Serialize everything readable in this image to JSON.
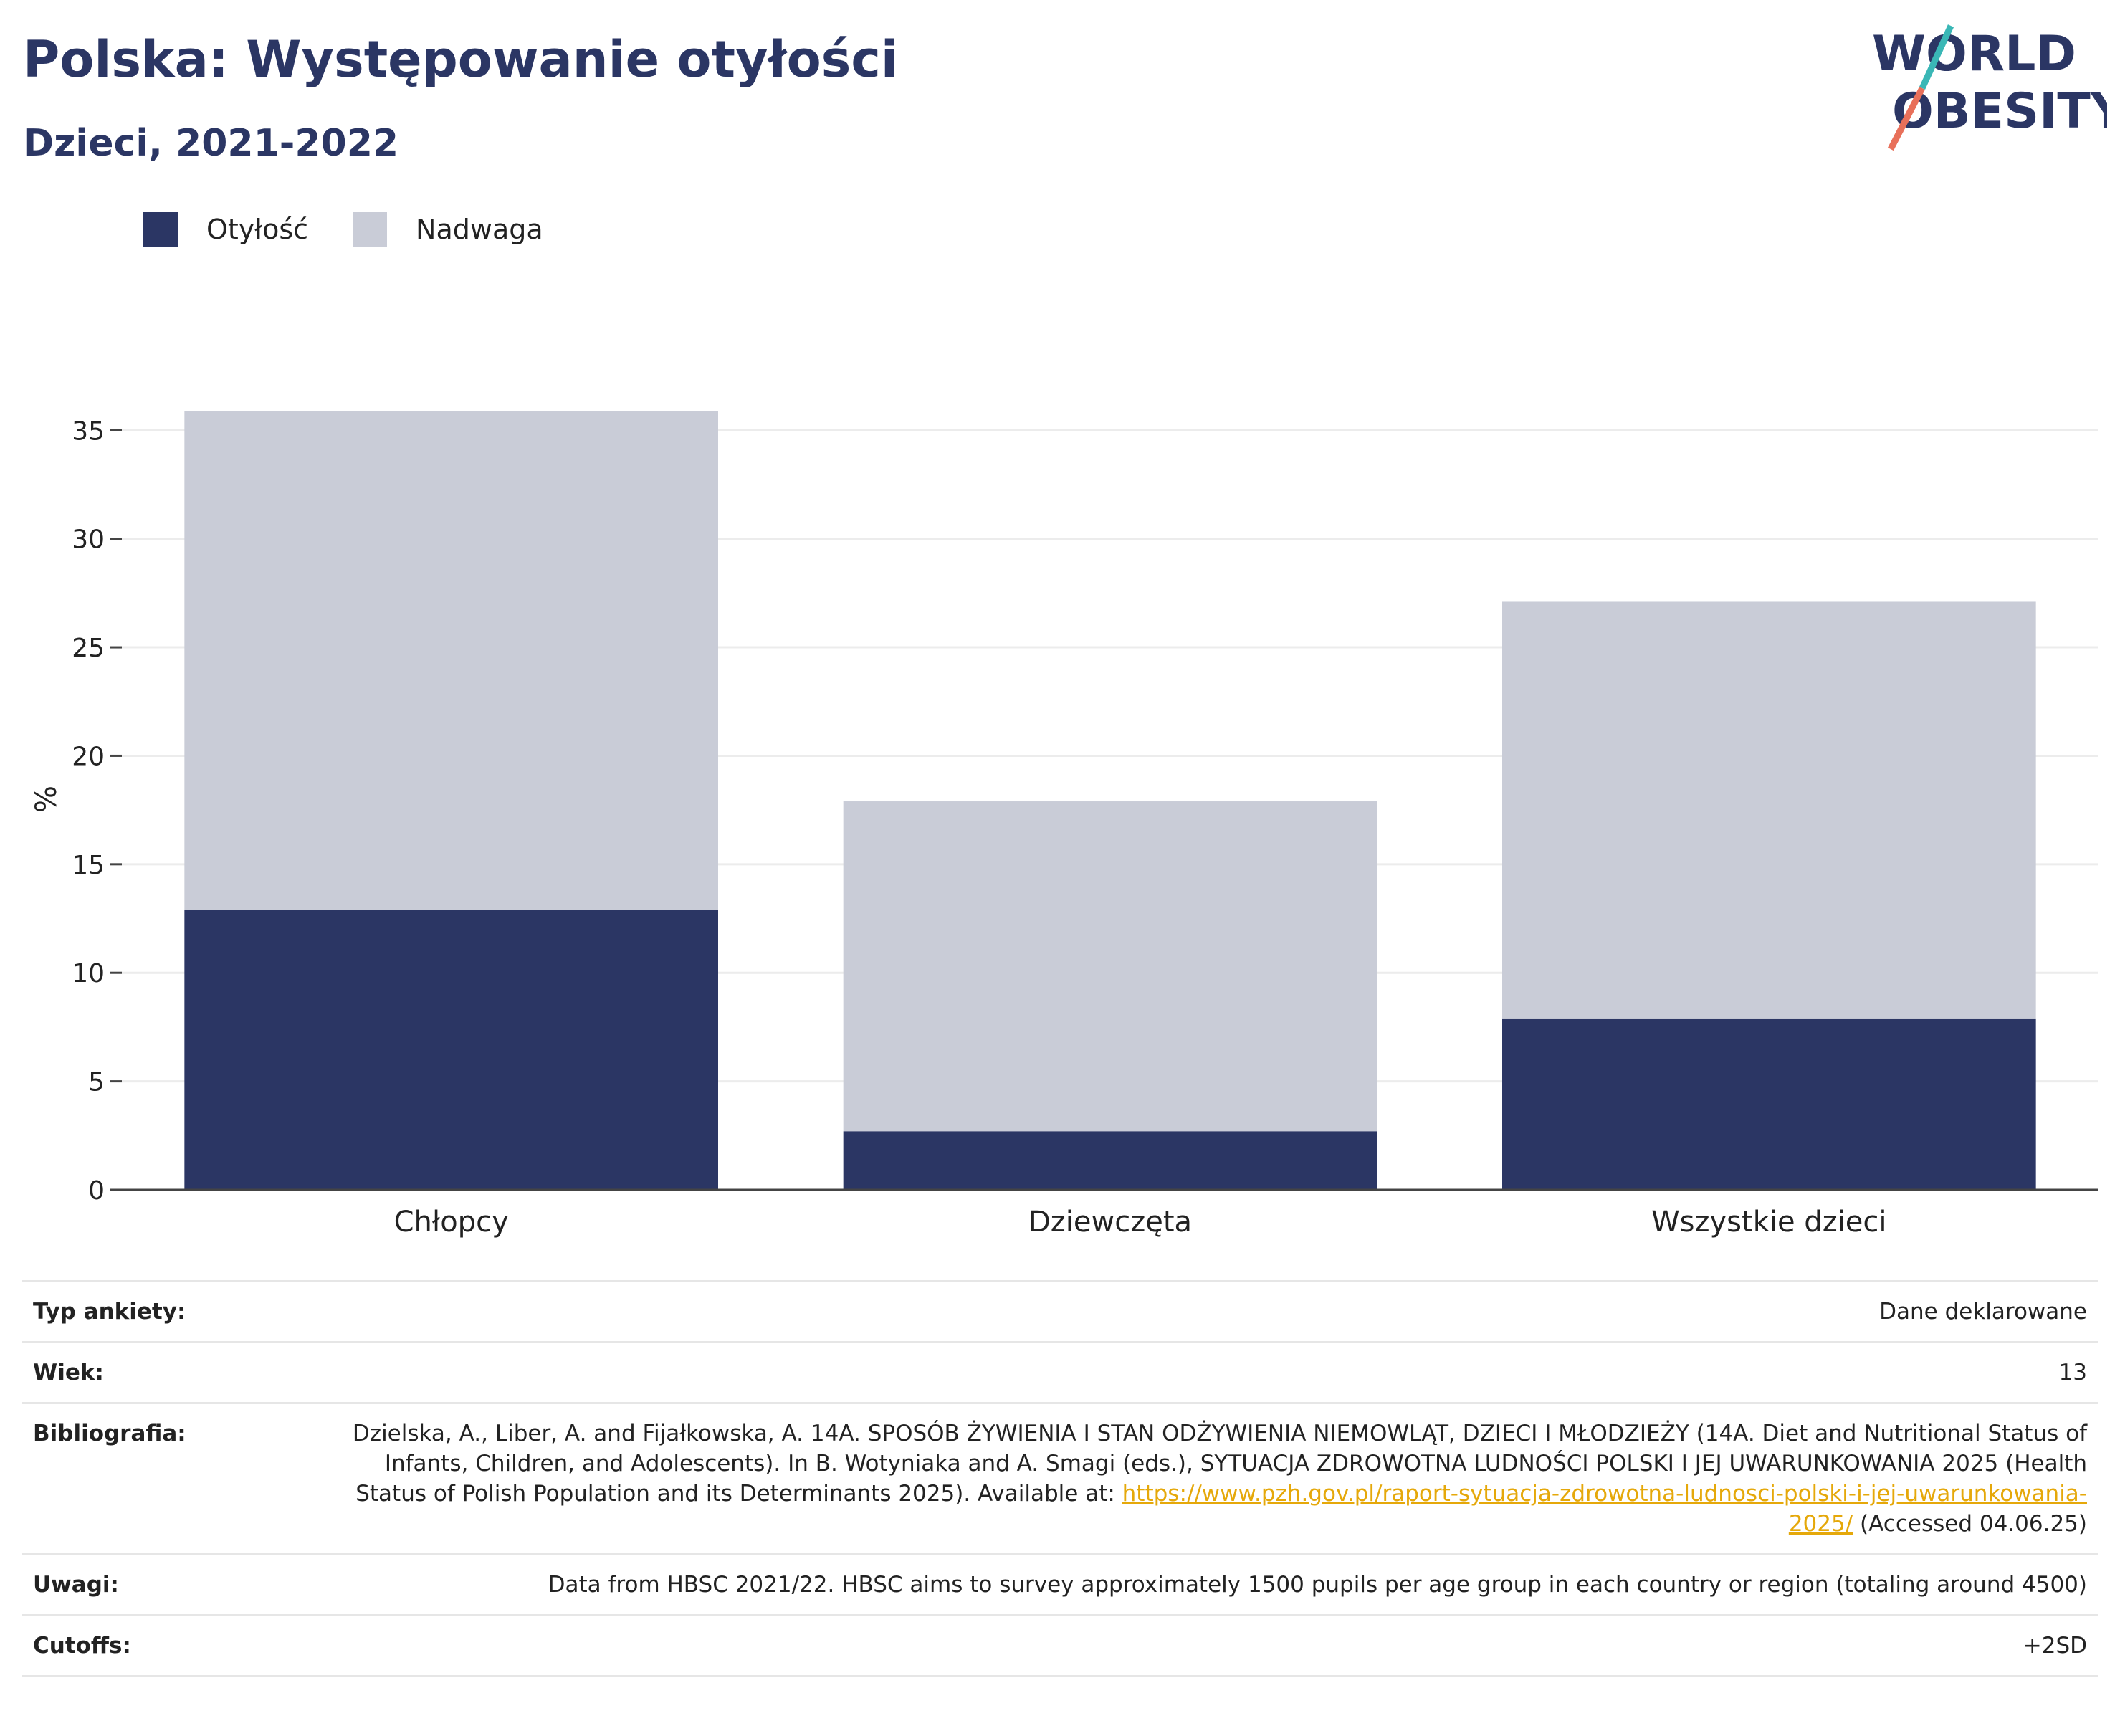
{
  "header": {
    "title": "Polska: Występowanie otyłości",
    "subtitle": "Dzieci, 2021-2022"
  },
  "logo": {
    "line1": "WORLD",
    "line2": "OBESITY"
  },
  "legend": [
    {
      "label": "Otyłość",
      "color": "#2b3664"
    },
    {
      "label": "Nadwaga",
      "color": "#c9ccd7"
    }
  ],
  "chart_data": {
    "type": "bar",
    "stacked": true,
    "categories": [
      "Chłopcy",
      "Dziewczęta",
      "Wszystkie dzieci"
    ],
    "series": [
      {
        "name": "Otyłość",
        "values": [
          12.9,
          2.7,
          7.9
        ],
        "color": "#2b3664"
      },
      {
        "name": "Nadwaga",
        "values": [
          23.0,
          15.2,
          19.2
        ],
        "color": "#c9ccd7"
      }
    ],
    "ylabel": "%",
    "ylim": [
      0,
      36
    ],
    "yticks": [
      0,
      5,
      10,
      15,
      20,
      25,
      30,
      35
    ],
    "grid": true,
    "legend_position": "top-left"
  },
  "meta": {
    "rows": [
      {
        "key": "Typ ankiety:",
        "value": "Dane deklarowane"
      },
      {
        "key": "Wiek:",
        "value": "13"
      },
      {
        "key": "Bibliografia:",
        "value": "Dzielska, A., Liber, A. and Fijałkowska, A. 14A. SPOSÓB ŻYWIENIA I STAN ODŻYWIENIA NIEMOWLĄT, DZIECI I MŁODZIEŻY (14A. Diet and Nutritional Status of Infants, Children, and Adolescents). In B. Wotyniaka and A. Smagi (eds.), SYTUACJA ZDROWOTNA LUDNOŚCI POLSKI I JEJ UWARUNKOWANIA 2025 (Health Status of Polish Population and its Determinants 2025). Available at:",
        "link": "https://www.pzh.gov.pl/raport-sytuacja-zdrowotna-ludnosci-polski-i-jej-uwarunkowania-2025/",
        "suffix": "(Accessed 04.06.25)"
      },
      {
        "key": "Uwagi:",
        "value": "Data from HBSC 2021/22. HBSC aims to survey approximately 1500 pupils per age group in each country or region (totaling around 4500)"
      },
      {
        "key": "Cutoffs:",
        "value": "+2SD"
      }
    ]
  }
}
